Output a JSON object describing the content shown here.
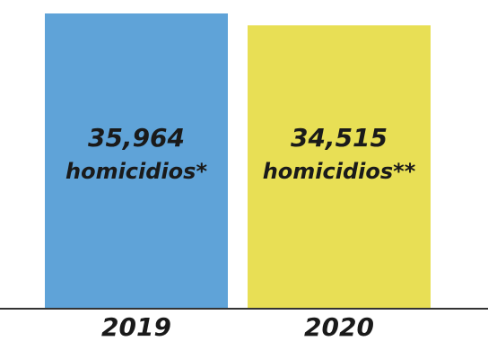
{
  "chart_data": {
    "type": "bar",
    "categories": [
      "2019",
      "2020"
    ],
    "values": [
      35964,
      34515
    ],
    "data_labels": [
      {
        "number": "35,964",
        "text": "homicidios*"
      },
      {
        "number": "34,515",
        "text": "homicidios**"
      }
    ],
    "colors": [
      "#5fa3d8",
      "#e8df55"
    ],
    "axis_color": "#333333",
    "grid": false,
    "legend": "none"
  }
}
